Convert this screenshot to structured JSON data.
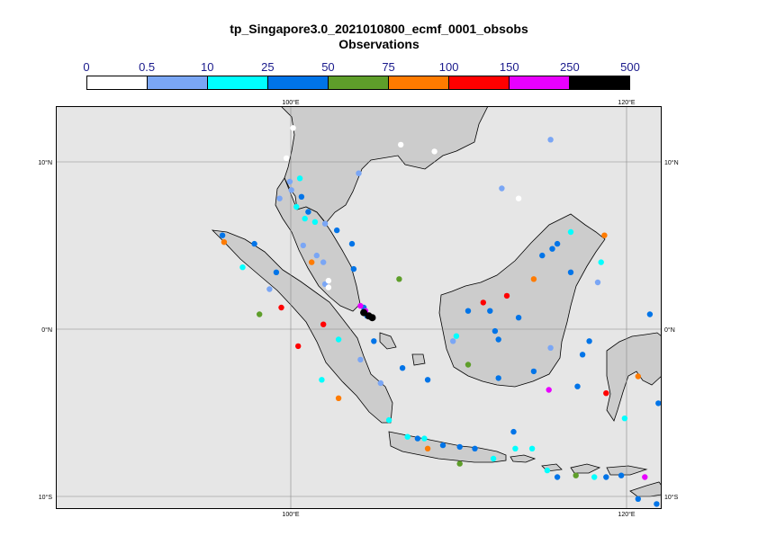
{
  "title": "tp_Singapore3.0_2021010800_ecmf_0001_obsobs",
  "subtitle": "Observations",
  "legend": {
    "labels": [
      "0",
      "0.5",
      "10",
      "25",
      "50",
      "75",
      "100",
      "150",
      "250",
      "500"
    ],
    "colors": [
      "#ffffff",
      "#7aa6f5",
      "#00ffff",
      "#0074e8",
      "#5e9e2a",
      "#ff7b00",
      "#ff0000",
      "#e800ff",
      "#000000"
    ]
  },
  "axes": {
    "lon_labels": [
      "100°E",
      "120°E"
    ],
    "lat_labels": [
      "10°N",
      "0°N",
      "10°S"
    ]
  },
  "chart_data": {
    "type": "scatter",
    "lon_range": [
      85.5,
      121.5
    ],
    "lat_range": [
      -10.5,
      13.5
    ],
    "points": [
      {
        "lon": 99.6,
        "lat": 12.2,
        "v": 0.3
      },
      {
        "lon": 106.0,
        "lat": 11.2,
        "v": 0.3
      },
      {
        "lon": 108.0,
        "lat": 10.8,
        "v": 0.3
      },
      {
        "lon": 113.0,
        "lat": 8.0,
        "v": 0.3
      },
      {
        "lon": 114.9,
        "lat": 11.5,
        "v": 5
      },
      {
        "lon": 103.5,
        "lat": 9.5,
        "v": 5
      },
      {
        "lon": 112.0,
        "lat": 8.6,
        "v": 5
      },
      {
        "lon": 99.2,
        "lat": 10.4,
        "v": 0.3
      },
      {
        "lon": 100.0,
        "lat": 9.2,
        "v": 15
      },
      {
        "lon": 99.4,
        "lat": 9.0,
        "v": 5
      },
      {
        "lon": 98.8,
        "lat": 8.0,
        "v": 5
      },
      {
        "lon": 99.5,
        "lat": 8.5,
        "v": 5
      },
      {
        "lon": 100.1,
        "lat": 8.1,
        "v": 30
      },
      {
        "lon": 99.8,
        "lat": 7.5,
        "v": 15
      },
      {
        "lon": 100.5,
        "lat": 7.2,
        "v": 30
      },
      {
        "lon": 100.3,
        "lat": 6.8,
        "v": 15
      },
      {
        "lon": 100.9,
        "lat": 6.6,
        "v": 15
      },
      {
        "lon": 101.5,
        "lat": 6.5,
        "v": 5
      },
      {
        "lon": 102.2,
        "lat": 6.1,
        "v": 30
      },
      {
        "lon": 103.1,
        "lat": 5.3,
        "v": 30
      },
      {
        "lon": 95.4,
        "lat": 5.8,
        "v": 30
      },
      {
        "lon": 95.5,
        "lat": 5.4,
        "v": 80
      },
      {
        "lon": 97.3,
        "lat": 5.3,
        "v": 30
      },
      {
        "lon": 100.2,
        "lat": 5.2,
        "v": 5
      },
      {
        "lon": 101.0,
        "lat": 4.6,
        "v": 5
      },
      {
        "lon": 100.7,
        "lat": 4.2,
        "v": 80
      },
      {
        "lon": 101.4,
        "lat": 4.2,
        "v": 5
      },
      {
        "lon": 96.6,
        "lat": 3.9,
        "v": 15
      },
      {
        "lon": 98.6,
        "lat": 3.6,
        "v": 30
      },
      {
        "lon": 103.2,
        "lat": 3.8,
        "v": 30
      },
      {
        "lon": 101.5,
        "lat": 2.9,
        "v": 5
      },
      {
        "lon": 105.9,
        "lat": 3.2,
        "v": 60
      },
      {
        "lon": 101.7,
        "lat": 2.7,
        "v": 0.3
      },
      {
        "lon": 103.8,
        "lat": 1.5,
        "v": 30
      },
      {
        "lon": 104.0,
        "lat": 1.0,
        "v": 30
      },
      {
        "lon": 103.6,
        "lat": 1.6,
        "v": 200
      },
      {
        "lon": 103.9,
        "lat": 1.3,
        "v": 200
      },
      {
        "lon": 103.8,
        "lat": 1.2,
        "v": 300
      },
      {
        "lon": 104.1,
        "lat": 1.0,
        "v": 300
      },
      {
        "lon": 104.3,
        "lat": 0.9,
        "v": 300
      },
      {
        "lon": 98.2,
        "lat": 2.6,
        "v": 5
      },
      {
        "lon": 98.9,
        "lat": 1.5,
        "v": 120
      },
      {
        "lon": 97.6,
        "lat": 1.1,
        "v": 60
      },
      {
        "lon": 101.4,
        "lat": 0.5,
        "v": 120
      },
      {
        "lon": 102.3,
        "lat": -0.4,
        "v": 15
      },
      {
        "lon": 104.4,
        "lat": -0.5,
        "v": 30
      },
      {
        "lon": 99.9,
        "lat": -0.8,
        "v": 120
      },
      {
        "lon": 103.6,
        "lat": -1.6,
        "v": 5
      },
      {
        "lon": 101.3,
        "lat": -2.8,
        "v": 15
      },
      {
        "lon": 106.1,
        "lat": -2.1,
        "v": 30
      },
      {
        "lon": 107.6,
        "lat": -2.8,
        "v": 30
      },
      {
        "lon": 104.8,
        "lat": -3.0,
        "v": 5
      },
      {
        "lon": 102.3,
        "lat": -3.9,
        "v": 80
      },
      {
        "lon": 105.3,
        "lat": -5.2,
        "v": 15
      },
      {
        "lon": 106.4,
        "lat": -6.2,
        "v": 15
      },
      {
        "lon": 107.0,
        "lat": -6.3,
        "v": 30
      },
      {
        "lon": 107.4,
        "lat": -6.3,
        "v": 15
      },
      {
        "lon": 107.6,
        "lat": -6.9,
        "v": 80
      },
      {
        "lon": 108.5,
        "lat": -6.7,
        "v": 30
      },
      {
        "lon": 109.5,
        "lat": -6.8,
        "v": 30
      },
      {
        "lon": 110.4,
        "lat": -6.9,
        "v": 30
      },
      {
        "lon": 109.5,
        "lat": -7.8,
        "v": 60
      },
      {
        "lon": 111.5,
        "lat": -7.5,
        "v": 15
      },
      {
        "lon": 112.8,
        "lat": -6.9,
        "v": 15
      },
      {
        "lon": 113.8,
        "lat": -6.9,
        "v": 15
      },
      {
        "lon": 112.7,
        "lat": -5.9,
        "v": 30
      },
      {
        "lon": 114.7,
        "lat": -8.2,
        "v": 15
      },
      {
        "lon": 115.3,
        "lat": -8.6,
        "v": 30
      },
      {
        "lon": 116.4,
        "lat": -8.5,
        "v": 60
      },
      {
        "lon": 117.5,
        "lat": -8.6,
        "v": 15
      },
      {
        "lon": 118.2,
        "lat": -8.6,
        "v": 30
      },
      {
        "lon": 119.1,
        "lat": -8.5,
        "v": 30
      },
      {
        "lon": 120.5,
        "lat": -8.6,
        "v": 200
      },
      {
        "lon": 120.1,
        "lat": -9.9,
        "v": 30
      },
      {
        "lon": 121.2,
        "lat": -10.2,
        "v": 30
      },
      {
        "lon": 119.3,
        "lat": -5.1,
        "v": 15
      },
      {
        "lon": 118.2,
        "lat": -3.6,
        "v": 120
      },
      {
        "lon": 120.1,
        "lat": -2.6,
        "v": 80
      },
      {
        "lon": 120.8,
        "lat": 1.1,
        "v": 30
      },
      {
        "lon": 121.3,
        "lat": -4.2,
        "v": 30
      },
      {
        "lon": 110.9,
        "lat": 1.8,
        "v": 120
      },
      {
        "lon": 112.3,
        "lat": 2.2,
        "v": 120
      },
      {
        "lon": 113.9,
        "lat": 3.2,
        "v": 80
      },
      {
        "lon": 114.4,
        "lat": 4.6,
        "v": 30
      },
      {
        "lon": 115.0,
        "lat": 5.0,
        "v": 30
      },
      {
        "lon": 115.3,
        "lat": 5.3,
        "v": 30
      },
      {
        "lon": 116.1,
        "lat": 6.0,
        "v": 15
      },
      {
        "lon": 118.1,
        "lat": 5.8,
        "v": 80
      },
      {
        "lon": 117.9,
        "lat": 4.2,
        "v": 15
      },
      {
        "lon": 116.1,
        "lat": 3.6,
        "v": 30
      },
      {
        "lon": 117.7,
        "lat": 3.0,
        "v": 5
      },
      {
        "lon": 110.0,
        "lat": 1.3,
        "v": 30
      },
      {
        "lon": 111.3,
        "lat": 1.3,
        "v": 30
      },
      {
        "lon": 113.0,
        "lat": 0.9,
        "v": 30
      },
      {
        "lon": 109.3,
        "lat": -0.2,
        "v": 15
      },
      {
        "lon": 109.1,
        "lat": -0.5,
        "v": 5
      },
      {
        "lon": 111.6,
        "lat": 0.1,
        "v": 30
      },
      {
        "lon": 111.8,
        "lat": -0.4,
        "v": 30
      },
      {
        "lon": 114.9,
        "lat": -0.9,
        "v": 5
      },
      {
        "lon": 117.2,
        "lat": -0.5,
        "v": 30
      },
      {
        "lon": 116.8,
        "lat": -1.3,
        "v": 30
      },
      {
        "lon": 110.0,
        "lat": -1.9,
        "v": 60
      },
      {
        "lon": 111.8,
        "lat": -2.7,
        "v": 30
      },
      {
        "lon": 113.9,
        "lat": -2.3,
        "v": 30
      },
      {
        "lon": 114.8,
        "lat": -3.4,
        "v": 200
      },
      {
        "lon": 116.5,
        "lat": -3.2,
        "v": 30
      },
      {
        "lon": 101.7,
        "lat": 3.1,
        "v": 0.3
      }
    ]
  }
}
